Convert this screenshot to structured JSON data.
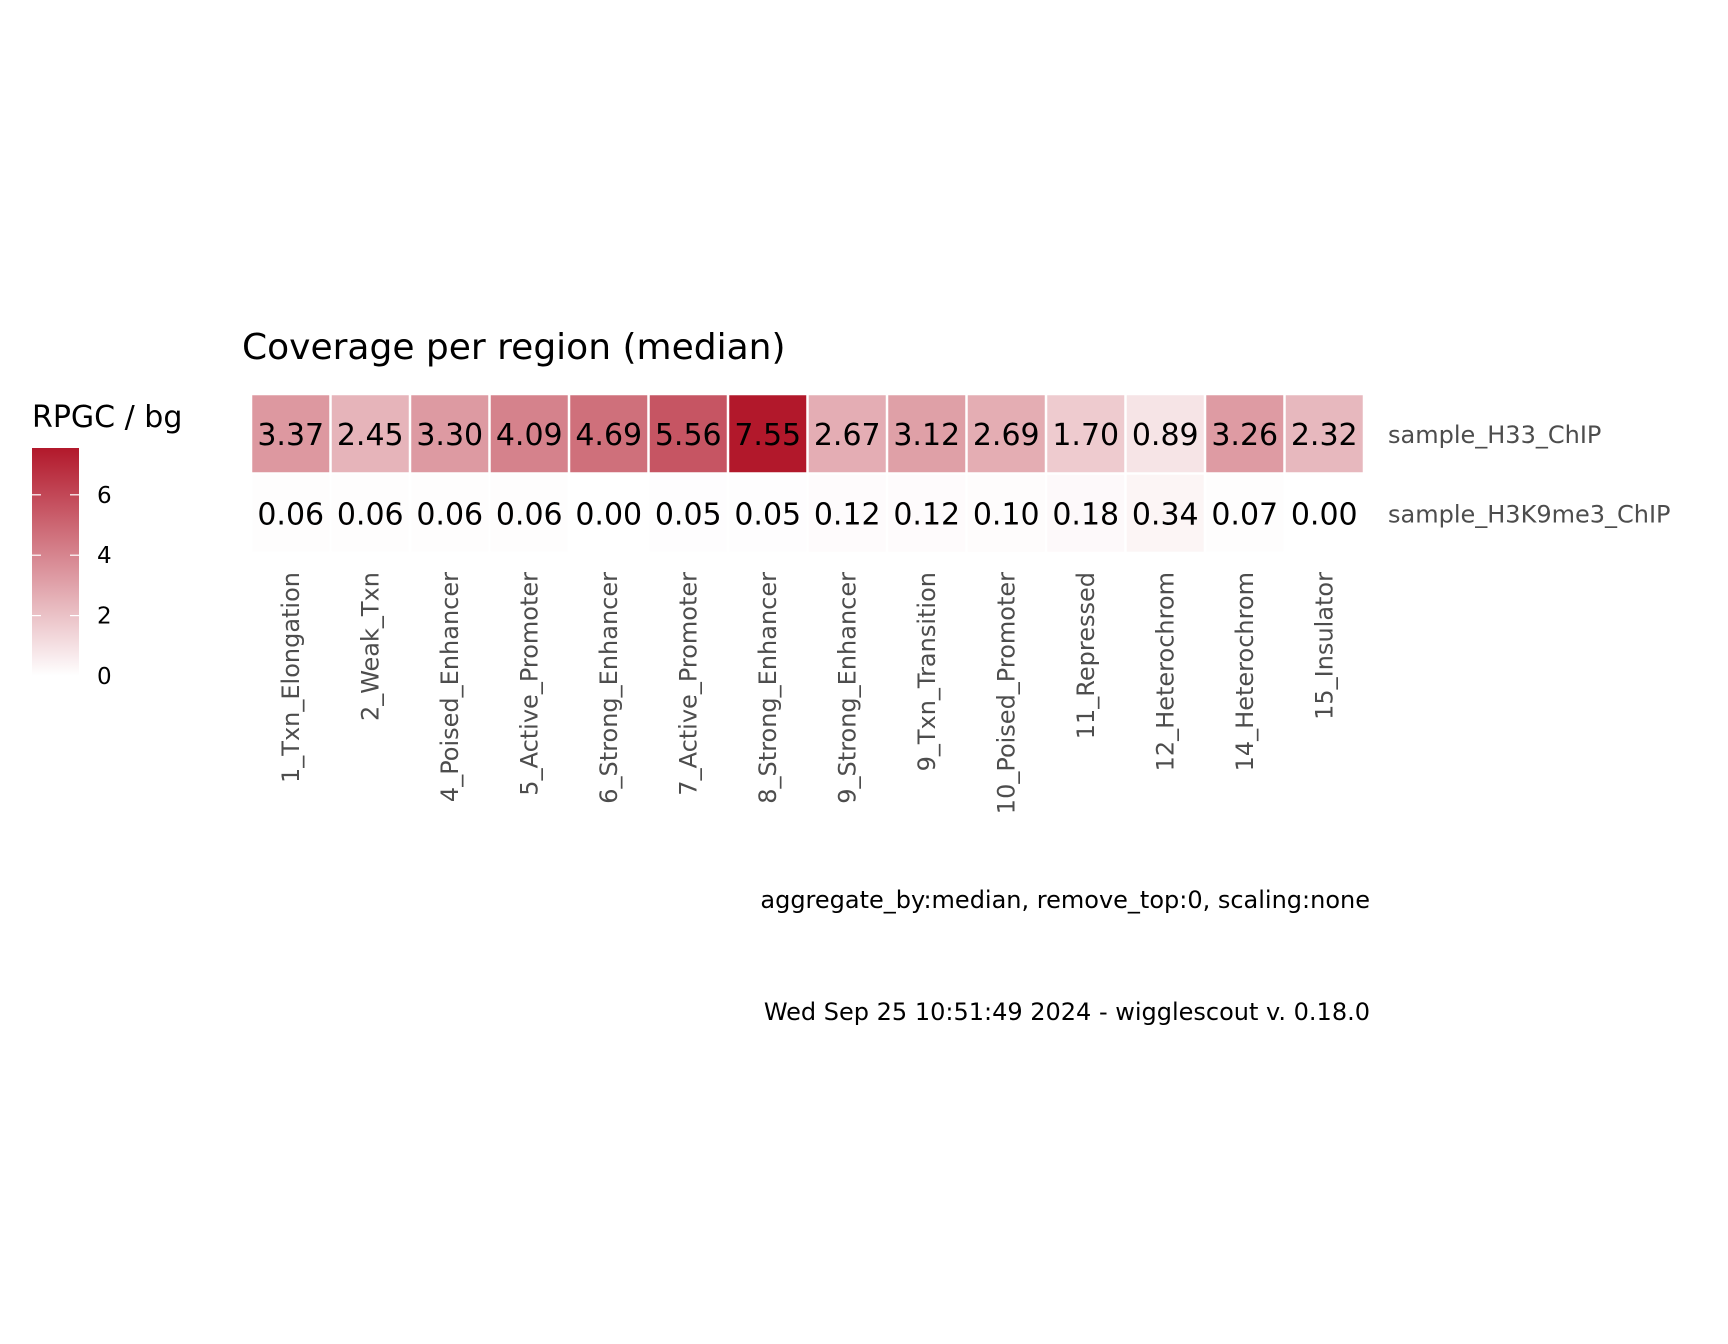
{
  "chart_data": {
    "type": "heatmap",
    "title": "Coverage per region (median)",
    "legend_title": "RPGC / bg",
    "legend_ticks": [
      0,
      2,
      4,
      6
    ],
    "color_range": [
      0,
      7.55
    ],
    "colors": {
      "low": "#ffffff",
      "high": "#b2182b"
    },
    "columns": [
      "1_Txn_Elongation",
      "2_Weak_Txn",
      "4_Poised_Enhancer",
      "5_Active_Promoter",
      "6_Strong_Enhancer",
      "7_Active_Promoter",
      "8_Strong_Enhancer",
      "9_Strong_Enhancer",
      "9_Txn_Transition",
      "10_Poised_Promoter",
      "11_Repressed",
      "12_Heterochrom",
      "14_Heterochrom",
      "15_Insulator"
    ],
    "rows": [
      {
        "name": "sample_H33_ChIP",
        "values": [
          3.37,
          2.45,
          3.3,
          4.09,
          4.69,
          5.56,
          7.55,
          2.67,
          3.12,
          2.69,
          1.7,
          0.89,
          3.26,
          2.32
        ],
        "labels": [
          "3.37",
          "2.45",
          "3.30",
          "4.09",
          "4.69",
          "5.56",
          "7.55",
          "2.67",
          "3.12",
          "2.69",
          "1.70",
          "0.89",
          "3.26",
          "2.32"
        ]
      },
      {
        "name": "sample_H3K9me3_ChIP",
        "values": [
          0.06,
          0.06,
          0.06,
          0.06,
          0.0,
          0.05,
          0.05,
          0.12,
          0.12,
          0.1,
          0.18,
          0.34,
          0.07,
          0.0
        ],
        "labels": [
          "0.06",
          "0.06",
          "0.06",
          "0.06",
          "0.00",
          "0.05",
          "0.05",
          "0.12",
          "0.12",
          "0.10",
          "0.18",
          "0.34",
          "0.07",
          "0.00"
        ]
      }
    ]
  },
  "caption": {
    "params": "aggregate_by:median, remove_top:0, scaling:none",
    "footer": "Wed Sep 25 10:51:49 2024 - wigglescout v. 0.18.0"
  }
}
